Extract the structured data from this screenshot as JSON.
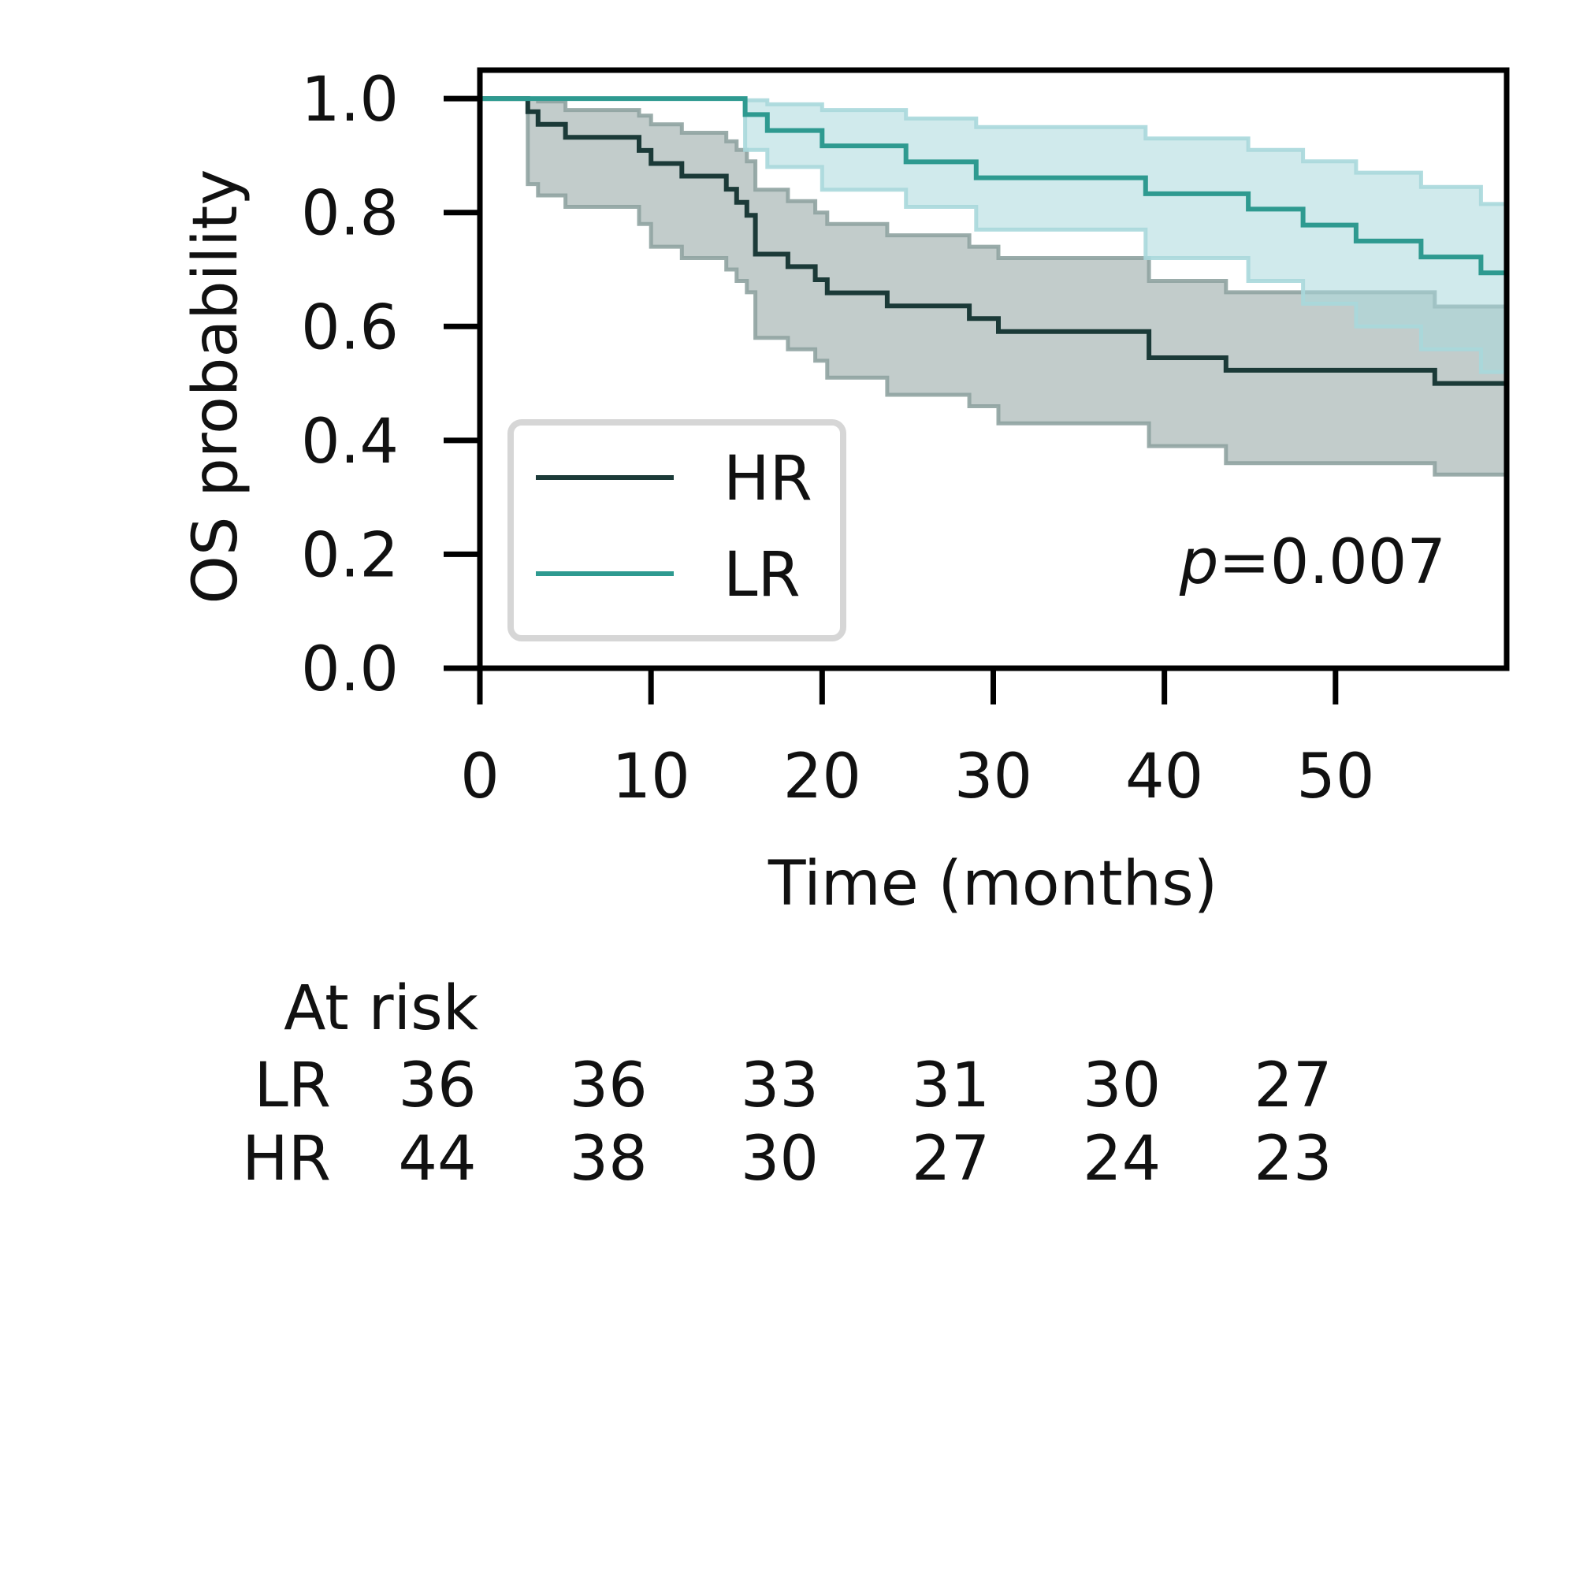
{
  "chart_data": {
    "type": "line",
    "subtype": "kaplan-meier",
    "xlabel": "Time (months)",
    "ylabel": "OS probability",
    "xlim": [
      0,
      60
    ],
    "ylim": [
      0,
      1.05
    ],
    "x_ticks": [
      0,
      10,
      20,
      30,
      40,
      50
    ],
    "y_ticks": [
      0.0,
      0.2,
      0.4,
      0.6,
      0.8,
      1.0
    ],
    "x_tick_labels": [
      "0",
      "10",
      "20",
      "30",
      "40",
      "50"
    ],
    "y_tick_labels": [
      "0.0",
      "0.2",
      "0.4",
      "0.6",
      "0.8",
      "1.0"
    ],
    "grid": false,
    "legend_position": "lower-left",
    "annotation": {
      "prefix": "p",
      "text": "=0.007"
    },
    "series": [
      {
        "name": "HR",
        "color": "#1b3a38",
        "band_color": "#8fa3a1",
        "x": [
          0,
          2.8,
          3.4,
          5,
          9.3,
          10,
          11.8,
          14.4,
          15,
          15.6,
          16.1,
          18,
          19.6,
          20.3,
          23.8,
          28.6,
          30.3,
          39.1,
          43.6,
          55.8,
          60
        ],
        "y": [
          1.0,
          0.977,
          0.955,
          0.932,
          0.909,
          0.886,
          0.864,
          0.841,
          0.818,
          0.795,
          0.727,
          0.705,
          0.682,
          0.659,
          0.636,
          0.614,
          0.591,
          0.545,
          0.523,
          0.5,
          0.5
        ],
        "lower": [
          1.0,
          0.85,
          0.83,
          0.81,
          0.78,
          0.74,
          0.72,
          0.7,
          0.68,
          0.66,
          0.58,
          0.56,
          0.54,
          0.51,
          0.48,
          0.46,
          0.43,
          0.39,
          0.36,
          0.34,
          0.34
        ],
        "upper": [
          1.0,
          1.0,
          0.995,
          0.98,
          0.97,
          0.955,
          0.94,
          0.925,
          0.91,
          0.89,
          0.84,
          0.82,
          0.8,
          0.78,
          0.76,
          0.74,
          0.72,
          0.68,
          0.66,
          0.635,
          0.635
        ]
      },
      {
        "name": "LR",
        "color": "#2e9a90",
        "band_color": "#a9d8dc",
        "x": [
          0,
          15.5,
          16.8,
          20,
          24.9,
          29,
          38.9,
          44.9,
          48.1,
          51.2,
          55,
          58.5,
          60
        ],
        "y": [
          1.0,
          0.972,
          0.944,
          0.917,
          0.889,
          0.861,
          0.833,
          0.806,
          0.778,
          0.75,
          0.722,
          0.694,
          0.694
        ],
        "lower": [
          1.0,
          0.91,
          0.88,
          0.84,
          0.81,
          0.77,
          0.72,
          0.68,
          0.64,
          0.6,
          0.56,
          0.52,
          0.52
        ],
        "upper": [
          1.0,
          0.997,
          0.99,
          0.98,
          0.965,
          0.95,
          0.93,
          0.91,
          0.89,
          0.87,
          0.845,
          0.815,
          0.815
        ]
      }
    ],
    "at_risk": {
      "title": "At risk",
      "times": [
        0,
        10,
        20,
        30,
        40,
        50
      ],
      "rows": [
        {
          "label": "LR",
          "values": [
            "36",
            "36",
            "33",
            "31",
            "30",
            "27"
          ]
        },
        {
          "label": "HR",
          "values": [
            "44",
            "38",
            "30",
            "27",
            "24",
            "23"
          ]
        }
      ]
    }
  }
}
